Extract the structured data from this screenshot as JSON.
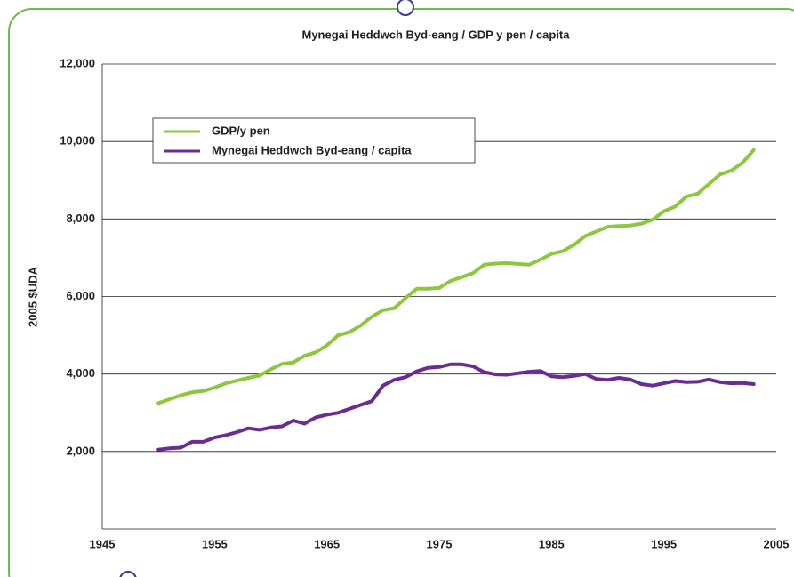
{
  "chart_data": {
    "type": "line",
    "title": "Mynegai Heddwch Byd-eang / GDP y pen / capita",
    "y_label": "2005 $UDA",
    "x": [
      1950,
      1951,
      1952,
      1953,
      1954,
      1955,
      1956,
      1957,
      1958,
      1959,
      1960,
      1961,
      1962,
      1963,
      1964,
      1965,
      1966,
      1967,
      1968,
      1969,
      1970,
      1971,
      1972,
      1973,
      1974,
      1975,
      1976,
      1977,
      1978,
      1979,
      1980,
      1981,
      1982,
      1983,
      1984,
      1985,
      1986,
      1987,
      1988,
      1989,
      1990,
      1991,
      1992,
      1993,
      1994,
      1995,
      1996,
      1997,
      1998,
      1999,
      2000,
      2001,
      2002,
      2003
    ],
    "series": [
      {
        "name": "GDP/y pen",
        "color": "#8dc63f",
        "values": [
          3250,
          3350,
          3450,
          3530,
          3560,
          3650,
          3760,
          3830,
          3900,
          3960,
          4120,
          4260,
          4300,
          4470,
          4560,
          4740,
          5000,
          5080,
          5250,
          5480,
          5650,
          5700,
          5960,
          6200,
          6200,
          6220,
          6400,
          6500,
          6600,
          6820,
          6850,
          6860,
          6840,
          6820,
          6950,
          7100,
          7170,
          7330,
          7560,
          7680,
          7800,
          7820,
          7830,
          7880,
          7980,
          8200,
          8320,
          8580,
          8650,
          8900,
          9150,
          9250,
          9450,
          9780
        ]
      },
      {
        "name": "Mynegai Heddwch Byd-eang / capita",
        "color": "#6a2c91",
        "values": [
          2050,
          2080,
          2100,
          2250,
          2250,
          2360,
          2420,
          2500,
          2600,
          2560,
          2620,
          2650,
          2800,
          2720,
          2880,
          2950,
          3000,
          3100,
          3200,
          3300,
          3700,
          3850,
          3920,
          4070,
          4160,
          4180,
          4250,
          4250,
          4200,
          4050,
          3990,
          3980,
          4020,
          4060,
          4080,
          3940,
          3920,
          3950,
          4000,
          3870,
          3850,
          3900,
          3860,
          3740,
          3700,
          3760,
          3820,
          3790,
          3800,
          3860,
          3790,
          3760,
          3770,
          3740
        ]
      }
    ],
    "xlim": [
      1945,
      2005
    ],
    "xticks": [
      1945,
      1955,
      1965,
      1975,
      1985,
      1995,
      2005
    ],
    "ylim": [
      0,
      12000
    ],
    "yticks": [
      {
        "value": 2000,
        "label": "2,000"
      },
      {
        "value": 4000,
        "label": "4,000"
      },
      {
        "value": 6000,
        "label": "6,000"
      },
      {
        "value": 8000,
        "label": "8,000"
      },
      {
        "value": 10000,
        "label": "10,000"
      },
      {
        "value": 12000,
        "label": "12,000"
      }
    ],
    "grid": true,
    "legend": "upper left"
  }
}
